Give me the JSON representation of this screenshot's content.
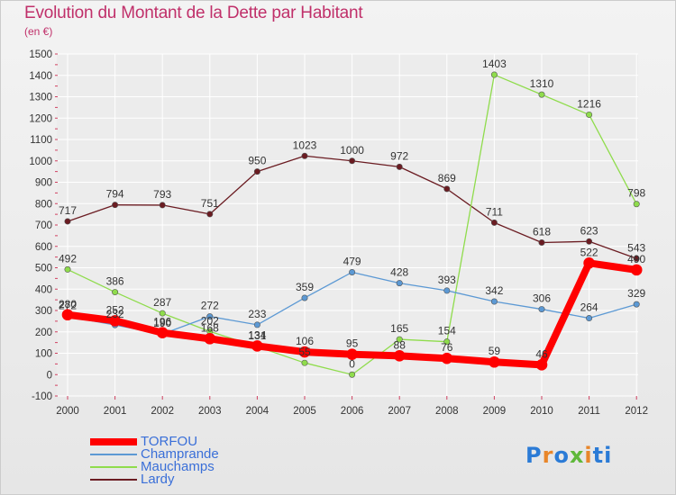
{
  "title": "Evolution du Montant de la Dette par Habitant",
  "subtitle": "(en €)",
  "logo": {
    "p": "P",
    "r": "r",
    "o": "o",
    "x": "x",
    "i": "i",
    "t": "ti"
  },
  "chart_data": {
    "type": "line",
    "title": "Evolution du Montant de la Dette par Habitant",
    "subtitle": "(en €)",
    "x": [
      "2000",
      "2001",
      "2002",
      "2003",
      "2004",
      "2005",
      "2006",
      "2007",
      "2008",
      "2009",
      "2010",
      "2011",
      "2012"
    ],
    "ylim": [
      -100,
      1500
    ],
    "yticks": [
      "-100",
      "0",
      "100",
      "200",
      "300",
      "400",
      "500",
      "600",
      "700",
      "800",
      "900",
      "1000",
      "1100",
      "1200",
      "1300",
      "1400",
      "1500"
    ],
    "grid": true,
    "legend_position": "bottom-left",
    "series": [
      {
        "name": "Lardy",
        "color": "#6b1c22",
        "strokeWidth": 1.3,
        "values": [
          717,
          794,
          793,
          751,
          950,
          1023,
          1000,
          972,
          869,
          711,
          618,
          623,
          543
        ],
        "labels": [
          "717",
          "794",
          "793",
          "751",
          "950",
          "1023",
          "1000",
          "972",
          "869",
          "711",
          "618",
          "623",
          "543"
        ]
      },
      {
        "name": "Mauchamps",
        "color": "#8fdc4c",
        "strokeWidth": 1.3,
        "values": [
          492,
          386,
          287,
          202,
          131,
          55,
          0,
          165,
          154,
          1403,
          1310,
          1216,
          798
        ],
        "labels": [
          "492",
          "386",
          "287",
          "202",
          "131",
          "55",
          "0",
          "165",
          "154",
          "1403",
          "1310",
          "1216",
          "798"
        ]
      },
      {
        "name": "Champrande",
        "color": "#5c99d4",
        "strokeWidth": 1.3,
        "values": [
          272,
          232,
          190,
          272,
          233,
          359,
          479,
          428,
          393,
          342,
          306,
          264,
          329
        ],
        "labels": [
          "272",
          "232",
          "190",
          "272",
          "233",
          "359",
          "479",
          "428",
          "393",
          "342",
          "306",
          "264",
          "329"
        ]
      },
      {
        "name": "TORFOU",
        "color": "#ff0000",
        "strokeWidth": 8,
        "values": [
          280,
          252,
          196,
          168,
          134,
          106,
          95,
          88,
          76,
          59,
          46,
          522,
          490
        ],
        "labels": [
          "280",
          "252",
          "196",
          "168",
          "134",
          "106",
          "95",
          "88",
          "76",
          "59",
          "46",
          "522",
          "490"
        ]
      }
    ]
  }
}
